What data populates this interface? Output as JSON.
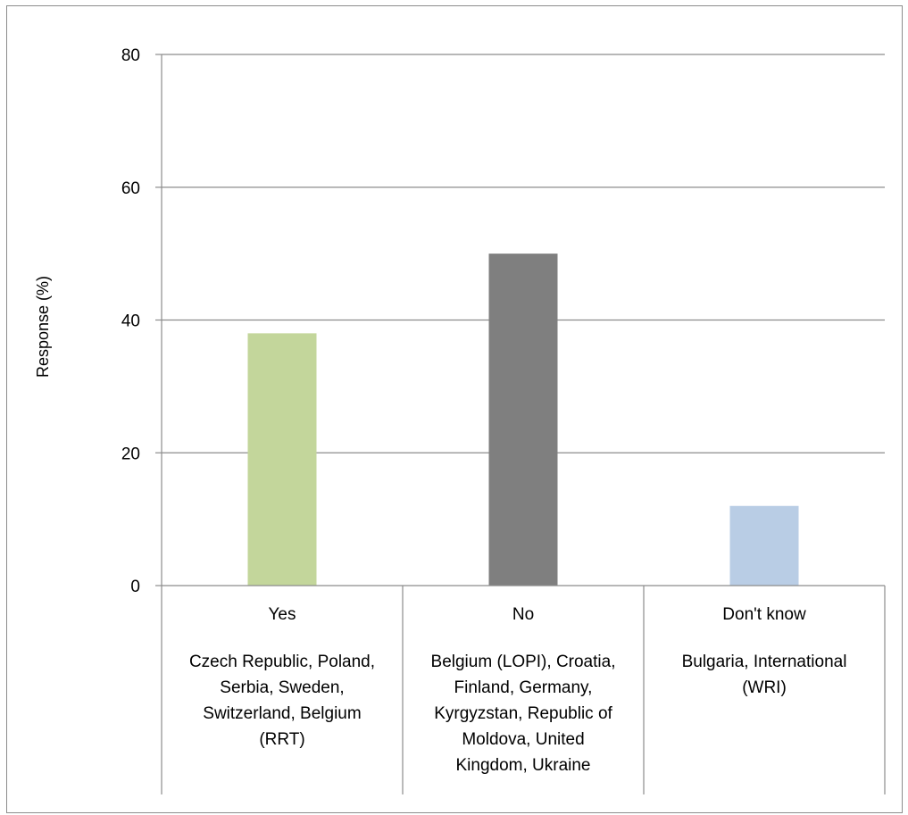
{
  "chart_data": {
    "type": "bar",
    "categories": [
      "Yes",
      "No",
      "Don't know"
    ],
    "category_notes": [
      [
        "Czech Republic, Poland,",
        "Serbia, Sweden,",
        "Switzerland, Belgium",
        "(RRT)"
      ],
      [
        "Belgium (LOPI), Croatia,",
        "Finland, Germany,",
        "Kyrgyzstan, Republic of",
        "Moldova, United",
        "Kingdom, Ukraine"
      ],
      [
        "Bulgaria,  International",
        "(WRI)"
      ]
    ],
    "values": [
      38,
      50,
      12
    ],
    "colors": [
      "#c3d69b",
      "#7f7f7f",
      "#b9cde5"
    ],
    "ylabel": "Response (%)",
    "xlabel": "",
    "title": "",
    "ylim": [
      0,
      80
    ],
    "yticks": [
      0,
      20,
      40,
      60,
      80
    ],
    "grid": true,
    "legend": "none"
  }
}
